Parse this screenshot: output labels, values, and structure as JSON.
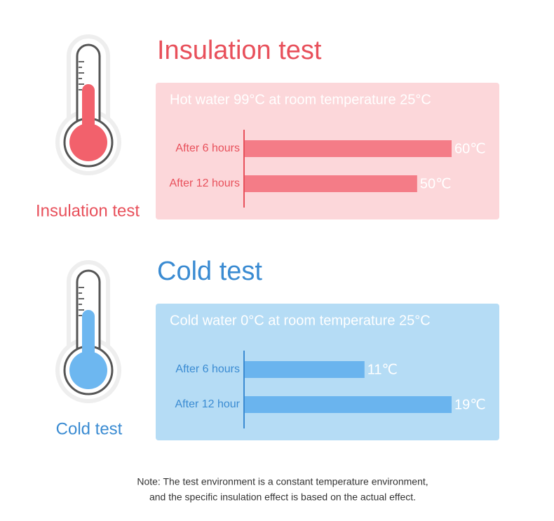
{
  "chart_data": [
    {
      "type": "bar",
      "title": "Insulation test",
      "subtitle": "Hot water 99°C at room temperature 25°C",
      "categories": [
        "After 6 hours",
        "After 12 hours"
      ],
      "series": [
        {
          "name": null,
          "color": "#f47c87",
          "values": [
            60,
            50
          ],
          "value_labels": [
            "60℃",
            "50℃"
          ]
        }
      ],
      "accent": "#e8505b",
      "panel": "#fcd7da"
    },
    {
      "type": "bar",
      "title": "Cold test",
      "subtitle": "Cold water 0°C at room temperature 25°C",
      "categories": [
        "After 6 hours",
        "After 12 hour"
      ],
      "series": [
        {
          "name": null,
          "color": "#6ab4ee",
          "values": [
            11,
            19
          ],
          "value_labels": [
            "11℃",
            "19℃"
          ]
        }
      ],
      "accent": "#3a8bd2",
      "panel": "#b5dcf5"
    }
  ],
  "icon_labels": [
    "Insulation test",
    "Cold test"
  ],
  "note": [
    "Note: The test environment is a constant temperature environment,",
    "and the specific insulation effect is based on the actual effect."
  ]
}
